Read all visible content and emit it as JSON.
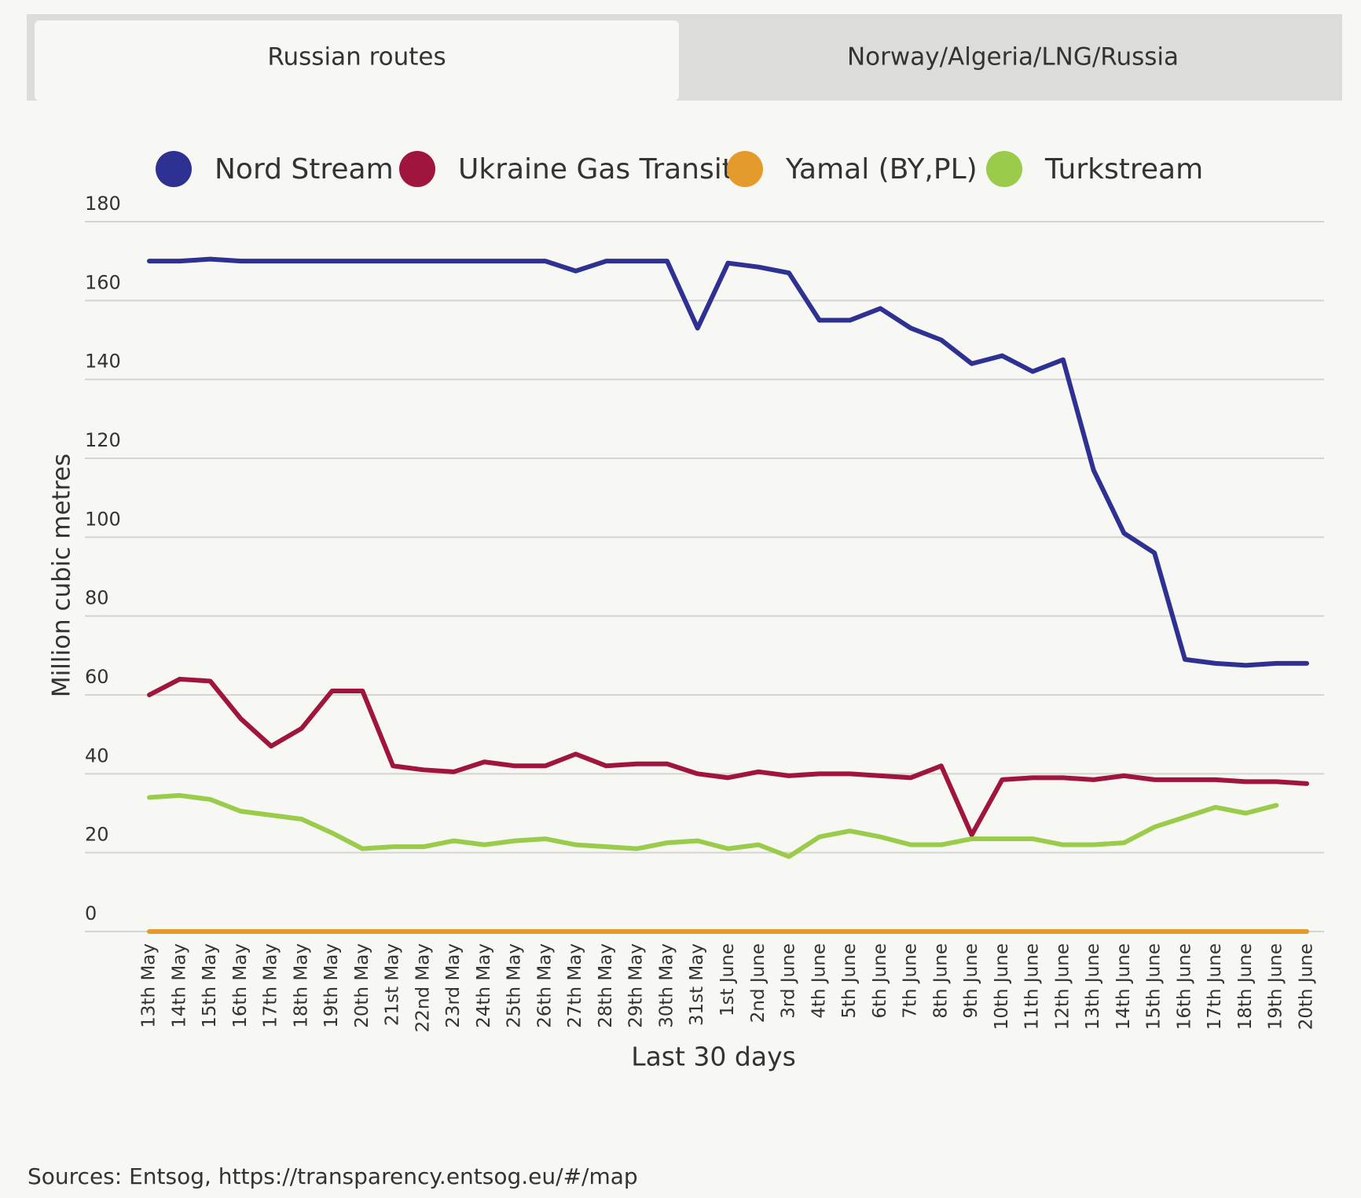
{
  "tabs": [
    "Russian routes",
    "Norway/Algeria/LNG/Russia"
  ],
  "chart_data": {
    "type": "line",
    "y_label": "Million cubic metres",
    "x_label": "Last 30 days",
    "categories": [
      "13th May",
      "14th May",
      "15th May",
      "16th May",
      "17th May",
      "18th May",
      "19th May",
      "20th May",
      "21st May",
      "22nd May",
      "23rd May",
      "24th May",
      "25th May",
      "26th May",
      "27th May",
      "28th May",
      "29th May",
      "30th May",
      "31st May",
      "1st June",
      "2nd June",
      "3rd June",
      "4th June",
      "5th June",
      "6th June",
      "7th June",
      "8th June",
      "9th June",
      "10th June",
      "11th June",
      "12th June",
      "13th June",
      "14th June",
      "15th June",
      "16th June",
      "17th June",
      "18th June",
      "19th June",
      "20th June"
    ],
    "series": [
      {
        "name": "Nord Stream",
        "color": "#2e3192",
        "values": [
          170,
          170,
          170.5,
          170,
          170,
          170,
          170,
          170,
          170,
          170,
          170,
          170,
          170,
          170,
          167.5,
          170,
          170,
          170,
          153,
          169.5,
          168.5,
          167,
          155,
          155,
          158,
          153,
          150,
          144,
          146,
          142,
          145,
          117,
          101,
          96,
          69,
          68,
          67.5,
          68,
          68
        ]
      },
      {
        "name": "Ukraine Gas Transit",
        "color": "#a0153e",
        "values": [
          60,
          64,
          63.5,
          54,
          47,
          51.5,
          61,
          61,
          42,
          41,
          40.5,
          43,
          42,
          42,
          45,
          42,
          42.5,
          42.5,
          40,
          39,
          40.5,
          39.5,
          40,
          40,
          39.5,
          39,
          42,
          24.5,
          38.5,
          39,
          39,
          38.5,
          39.5,
          38.5,
          38.5,
          38.5,
          38,
          38,
          37.5
        ]
      },
      {
        "name": "Yamal (BY,PL)",
        "color": "#e59a2c",
        "values": [
          0,
          0,
          0,
          0,
          0,
          0,
          0,
          0,
          0,
          0,
          0,
          0,
          0,
          0,
          0,
          0,
          0,
          0,
          0,
          0,
          0,
          0,
          0,
          0,
          0,
          0,
          0,
          0,
          0,
          0,
          0,
          0,
          0,
          0,
          0,
          0,
          0,
          0,
          0
        ]
      },
      {
        "name": "Turkstream",
        "color": "#9bcb4a",
        "values": [
          34,
          34.5,
          33.5,
          30.5,
          29.5,
          28.5,
          25,
          21,
          21.5,
          21.5,
          23,
          22,
          23,
          23.5,
          22,
          21.5,
          21,
          22.5,
          23,
          21,
          22,
          19,
          24,
          25.5,
          24,
          22,
          22,
          23.5,
          23.5,
          23.5,
          22,
          22,
          22.5,
          26.5,
          29,
          31.5,
          30,
          32,
          null
        ]
      }
    ],
    "ylim": [
      0,
      180
    ],
    "yticks": [
      0,
      20,
      40,
      60,
      80,
      100,
      120,
      140,
      160,
      180
    ],
    "grid": true
  },
  "source": "Sources: Entsog,  https://transparency.entsog.eu/#/map"
}
